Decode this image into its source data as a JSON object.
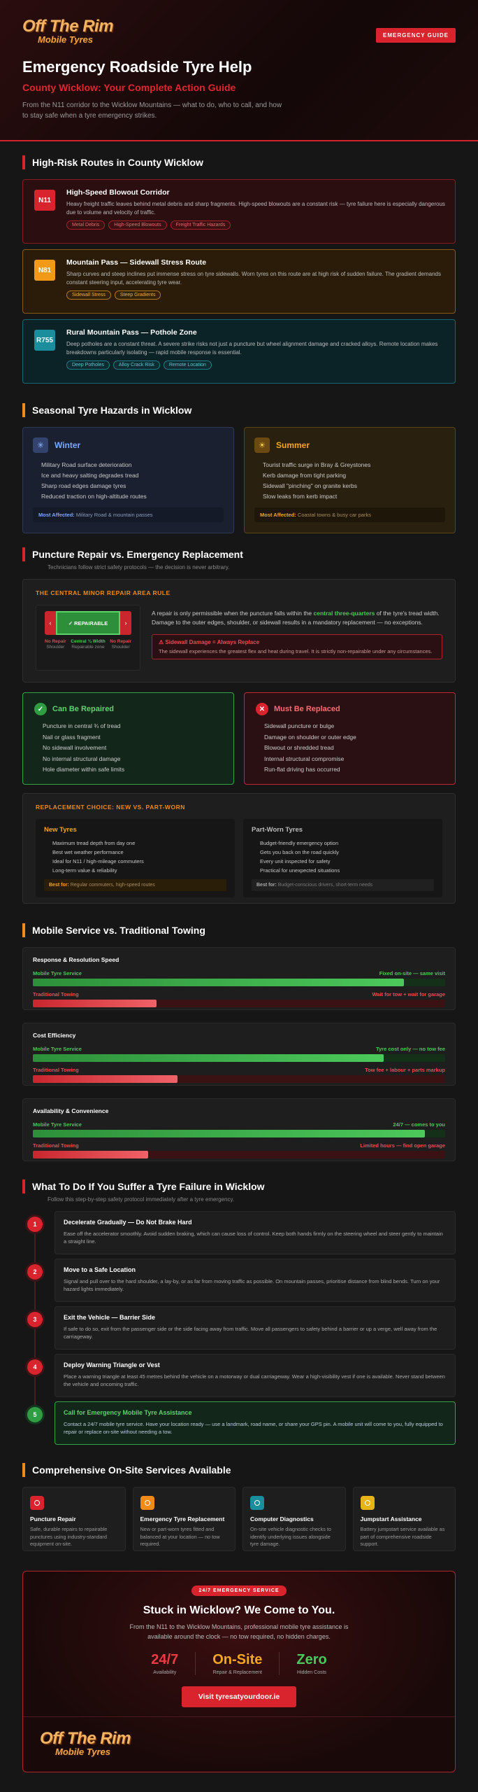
{
  "header": {
    "logo": {
      "name": "Off The Rim",
      "tagline": "Mobile Tyres"
    },
    "button": "EMERGENCY GUIDE",
    "title": "Emergency Roadside Tyre Help",
    "subtitle": "County Wicklow: Your Complete Action Guide",
    "intro": "From the N11 corridor to the Wicklow Mountains — what to do, who to call, and how to stay safe when a tyre emergency strikes."
  },
  "routes": {
    "title": "High-Risk Routes in County Wicklow",
    "items": [
      {
        "badge": "N11",
        "title": "High-Speed Blowout Corridor",
        "text": "Heavy freight traffic leaves behind metal debris and sharp fragments. High-speed blowouts are a constant risk — tyre failure here is especially dangerous due to volume and velocity of traffic.",
        "tags": [
          "Metal Debris",
          "High-Speed Blowouts",
          "Freight Traffic Hazards"
        ]
      },
      {
        "badge": "N81",
        "title": "Mountain Pass — Sidewall Stress Route",
        "text": "Sharp curves and steep inclines put immense stress on tyre sidewalls. Worn tyres on this route are at high risk of sudden failure. The gradient demands constant steering input, accelerating tyre wear.",
        "tags": [
          "Sidewall Stress",
          "Steep Gradients"
        ]
      },
      {
        "badge": "R755",
        "title": "Rural Mountain Pass — Pothole Zone",
        "text": "Deep potholes are a constant threat. A severe strike risks not just a puncture but wheel alignment damage and cracked alloys. Remote location makes breakdowns particularly isolating — rapid mobile response is essential.",
        "tags": [
          "Deep Potholes",
          "Alloy Crack Risk",
          "Remote Location"
        ]
      }
    ]
  },
  "seasons": {
    "title": "Seasonal Tyre Hazards in Wicklow",
    "items": [
      {
        "name": "Winter",
        "points": [
          "Military Road surface deterioration",
          "Ice and heavy salting degrades tread",
          "Sharp road edges damage tyres",
          "Reduced traction on high-altitude routes"
        ],
        "affected_label": "Most Affected:",
        "affected": "Military Road & mountain passes"
      },
      {
        "name": "Summer",
        "points": [
          "Tourist traffic surge in Bray & Greystones",
          "Kerb damage from tight parking",
          "Sidewall \"pinching\" on granite kerbs",
          "Slow leaks from kerb impact"
        ],
        "affected_label": "Most Affected:",
        "affected": "Coastal towns & busy car parks"
      }
    ]
  },
  "repair": {
    "title": "Puncture Repair vs. Emergency Replacement",
    "subtitle": "Technicians follow strict safety protocols — the decision is never arbitrary.",
    "rule": {
      "title": "THE CENTRAL MINOR REPAIR AREA RULE",
      "diagram": {
        "status": "✓ REPAIRABLE",
        "zones": [
          {
            "title": "No Repair",
            "sub": "Shoulder"
          },
          {
            "title": "Central ¾ Width",
            "sub": "Repairable zone"
          },
          {
            "title": "No Repair",
            "sub": "Shoulder"
          }
        ]
      },
      "text": [
        "A repair is only permissible when the puncture falls within the ",
        "central three-quarters",
        " of the tyre's tread width. Damage to the outer edges, shoulder, or sidewall results in a mandatory replacement — no exceptions."
      ],
      "warning": {
        "title": "⚠ Sidewall Damage = Always Replace",
        "text": "The sidewall experiences the greatest flex and heat during travel. It is strictly non-repairable under any circumstances."
      }
    },
    "can": {
      "title": "Can Be Repaired",
      "items": [
        "Puncture in central ¾ of tread",
        "Nail or glass fragment",
        "No sidewall involvement",
        "No internal structural damage",
        "Hole diameter within safe limits"
      ]
    },
    "must": {
      "title": "Must Be Replaced",
      "items": [
        "Sidewall puncture or bulge",
        "Damage on shoulder or outer edge",
        "Blowout or shredded tread",
        "Internal structural compromise",
        "Run-flat driving has occurred"
      ]
    },
    "choice": {
      "title": "REPLACEMENT CHOICE: NEW VS. PART-WORN",
      "options": [
        {
          "name": "New Tyres",
          "points": [
            "Maximum tread depth from day one",
            "Best wet weather performance",
            "Ideal for N11 / high-mileage commuters",
            "Long-term value & reliability"
          ],
          "best_label": "Best for:",
          "best": "Regular commuters, high-speed routes"
        },
        {
          "name": "Part-Worn Tyres",
          "points": [
            "Budget-friendly emergency option",
            "Gets you back on the road quickly",
            "Every unit inspected for safety",
            "Practical for unexpected situations"
          ],
          "best_label": "Best for:",
          "best": "Budget-conscious drivers, short-term needs"
        }
      ]
    }
  },
  "comparison": {
    "title": "Mobile Service vs. Traditional Towing",
    "cards": [
      {
        "title": "Response & Resolution Speed",
        "rows": [
          {
            "name": "Mobile Tyre Service",
            "note": "Fixed on-site — same visit"
          },
          {
            "name": "Traditional Towing",
            "note": "Wait for tow + wait for garage"
          }
        ]
      },
      {
        "title": "Cost Efficiency",
        "rows": [
          {
            "name": "Mobile Tyre Service",
            "note": "Tyre cost only — no tow fee"
          },
          {
            "name": "Traditional Towing",
            "note": "Tow fee + labour + parts markup"
          }
        ]
      },
      {
        "title": "Availability & Convenience",
        "rows": [
          {
            "name": "Mobile Tyre Service",
            "note": "24/7 — comes to you"
          },
          {
            "name": "Traditional Towing",
            "note": "Limited hours — find open garage"
          }
        ]
      }
    ]
  },
  "steps": {
    "title": "What To Do If You Suffer a Tyre Failure in Wicklow",
    "subtitle": "Follow this step-by-step safety protocol immediately after a tyre emergency.",
    "items": [
      {
        "number": 1,
        "title": "Decelerate Gradually — Do Not Brake Hard",
        "text": "Ease off the accelerator smoothly. Avoid sudden braking, which can cause loss of control. Keep both hands firmly on the steering wheel and steer gently to maintain a straight line."
      },
      {
        "number": 2,
        "title": "Move to a Safe Location",
        "text": "Signal and pull over to the hard shoulder, a lay-by, or as far from moving traffic as possible. On mountain passes, prioritise distance from blind bends. Turn on your hazard lights immediately."
      },
      {
        "number": 3,
        "title": "Exit the Vehicle — Barrier Side",
        "text": "If safe to do so, exit from the passenger side or the side facing away from traffic. Move all passengers to safety behind a barrier or up a verge, well away from the carriageway."
      },
      {
        "number": 4,
        "title": "Deploy Warning Triangle or Vest",
        "text": "Place a warning triangle at least 45 metres behind the vehicle on a motorway or dual carriageway. Wear a high-visibility vest if one is available. Never stand between the vehicle and oncoming traffic."
      },
      {
        "number": 5,
        "title": "Call for Emergency Mobile Tyre Assistance",
        "text": "Contact a 24/7 mobile tyre service. Have your location ready — use a landmark, road name, or share your GPS pin. A mobile unit will come to you, fully equipped to repair or replace on-site without needing a tow."
      }
    ]
  },
  "services": {
    "title": "Comprehensive On-Site Services Available",
    "items": [
      {
        "title": "Puncture Repair",
        "text": "Safe, durable repairs to repairable punctures using industry-standard equipment on-site."
      },
      {
        "title": "Emergency Tyre Replacement",
        "text": "New or part-worn tyres fitted and balanced at your location — no tow required."
      },
      {
        "title": "Computer Diagnostics",
        "text": "On-site vehicle diagnostic checks to identify underlying issues alongside tyre damage."
      },
      {
        "title": "Jumpstart Assistance",
        "text": "Battery jumpstart service available as part of comprehensive roadside support."
      }
    ]
  },
  "cta": {
    "badge": "24/7 EMERGENCY SERVICE",
    "title": "Stuck in Wicklow? We Come to You.",
    "text": "From the N11 to the Wicklow Mountains, professional mobile tyre assistance is available around the clock — no tow required, no hidden charges.",
    "stats": [
      {
        "value": "24/7",
        "label": "Availability"
      },
      {
        "value": "On-Site",
        "label": "Repair & Replacement"
      },
      {
        "value": "Zero",
        "label": "Hidden Costs"
      }
    ],
    "button": "Visit tyresatyourdoor.ie",
    "logo": {
      "name": "Off The Rim",
      "tagline": "Mobile Tyres"
    }
  }
}
